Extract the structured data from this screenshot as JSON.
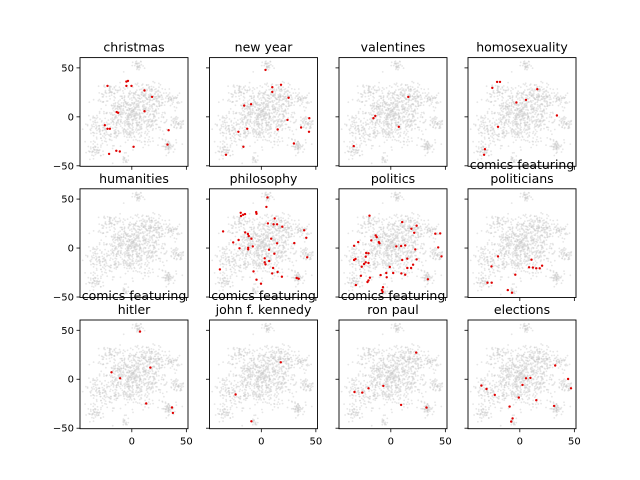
{
  "chart_data": {
    "type": "scatter",
    "layout": "3x4 small multiples, shared axes",
    "xlim": [
      -47.5,
      51.5
    ],
    "ylim": [
      -50.5,
      60.5
    ],
    "xticks": [
      0,
      50
    ],
    "yticks": [
      50,
      0,
      -50
    ],
    "xtick_labels": [
      "0",
      "50"
    ],
    "ytick_labels": [
      "50",
      "0",
      "−50"
    ],
    "background_color": "#c8c8c8",
    "highlight_color": "#e00000",
    "panels": [
      {
        "title": "christmas",
        "points": [
          [
            -22.3,
            31.6
          ],
          [
            -5,
            36
          ],
          [
            -3.5,
            36.7
          ],
          [
            -5,
            31.6
          ],
          [
            -0.3,
            31.6
          ],
          [
            11.6,
            26.9
          ],
          [
            18.6,
            20.4
          ],
          [
            -13.9,
            4.8
          ],
          [
            -12.6,
            4.1
          ],
          [
            11.6,
            5.8
          ],
          [
            -24.8,
            -8.5
          ],
          [
            -22.3,
            -12.2
          ],
          [
            -20.1,
            -12.2
          ],
          [
            33.7,
            -13.6
          ],
          [
            32.7,
            -28.3
          ],
          [
            1.6,
            -30.6
          ],
          [
            -14.2,
            -34.7
          ],
          [
            -11,
            -35.4
          ],
          [
            -20.8,
            -37.8
          ]
        ]
      },
      {
        "title": "new year",
        "points": [
          [
            3.8,
            47.9
          ],
          [
            10.1,
            30.3
          ],
          [
            18,
            32.7
          ],
          [
            10.1,
            25.5
          ],
          [
            25,
            19.4
          ],
          [
            -15.7,
            11.5
          ],
          [
            -9.4,
            12.9
          ],
          [
            24,
            -3.1
          ],
          [
            44,
            -1.4
          ],
          [
            -21,
            -15.3
          ],
          [
            -12.9,
            -12.2
          ],
          [
            15,
            -12.9
          ],
          [
            36.5,
            -10.9
          ],
          [
            43.7,
            -15.3
          ],
          [
            29.9,
            -27.2
          ],
          [
            -16.4,
            -30.6
          ],
          [
            -32.4,
            -38.8
          ]
        ]
      },
      {
        "title": "valentines",
        "points": [
          [
            16,
            20.4
          ],
          [
            -14.2,
            1
          ],
          [
            -16,
            -1.4
          ],
          [
            7.3,
            -10.2
          ],
          [
            -34,
            -29.9
          ]
        ]
      },
      {
        "title": "homosexuality",
        "points": [
          [
            -20.8,
            35.7
          ],
          [
            -18.2,
            35.7
          ],
          [
            -25.2,
            29.6
          ],
          [
            16,
            28.2
          ],
          [
            5.7,
            17.3
          ],
          [
            -3.1,
            14.6
          ],
          [
            34,
            1.4
          ],
          [
            -20,
            -10.2
          ],
          [
            -32,
            -33
          ],
          [
            -32.7,
            -38.8
          ]
        ]
      },
      {
        "title": "humanities",
        "points": []
      },
      {
        "title": "philosophy",
        "points": [
          [
            5.7,
            51.7
          ],
          [
            4.7,
            42
          ],
          [
            -18.9,
            36
          ],
          [
            -16.7,
            34
          ],
          [
            -15,
            34.7
          ],
          [
            -18.6,
            32.7
          ],
          [
            -4.7,
            36.7
          ],
          [
            -4.4,
            35
          ],
          [
            12.3,
            30.3
          ],
          [
            6,
            25.2
          ],
          [
            11.3,
            24.2
          ],
          [
            14.5,
            24.2
          ],
          [
            19.2,
            21.8
          ],
          [
            -35,
            17
          ],
          [
            -14.8,
            16
          ],
          [
            -12.3,
            14.3
          ],
          [
            -11.6,
            12.2
          ],
          [
            -9.1,
            9.5
          ],
          [
            9.1,
            9.5
          ],
          [
            39.3,
            18.1
          ],
          [
            41.2,
            10.5
          ],
          [
            -20.8,
            8.2
          ],
          [
            -25.8,
            5.8
          ],
          [
            -12,
            0.3
          ],
          [
            -12,
            -1.4
          ],
          [
            -7.8,
            1.7
          ],
          [
            -20,
            -0.3
          ],
          [
            14.5,
            4.8
          ],
          [
            30.2,
            5.1
          ],
          [
            7,
            -1.7
          ],
          [
            12,
            -5.8
          ],
          [
            42.1,
            -9.5
          ],
          [
            3.1,
            -10.5
          ],
          [
            7.2,
            -13.3
          ],
          [
            3.1,
            -14.6
          ],
          [
            3.8,
            -16.7
          ],
          [
            10.8,
            -20.4
          ],
          [
            14.9,
            -24.5
          ],
          [
            10,
            -25.9
          ],
          [
            -7.2,
            -23.8
          ],
          [
            18.9,
            -29.3
          ],
          [
            32.4,
            -30.6
          ],
          [
            34.3,
            -31.3
          ],
          [
            -38,
            -21.8
          ],
          [
            -4.4,
            -32.3
          ],
          [
            -0.3,
            -36.4
          ]
        ]
      },
      {
        "title": "politics",
        "points": [
          [
            -19.5,
            33
          ],
          [
            10.4,
            26.5
          ],
          [
            18.9,
            19.7
          ],
          [
            23.6,
            22.8
          ],
          [
            21.4,
            15.6
          ],
          [
            40.8,
            14.6
          ],
          [
            45.3,
            15
          ],
          [
            -13.9,
            12.9
          ],
          [
            -12.9,
            11.2
          ],
          [
            -17.9,
            7.8
          ],
          [
            -11,
            6.1
          ],
          [
            -10.4,
            4.8
          ],
          [
            -29.9,
            6.1
          ],
          [
            -33.7,
            2.3
          ],
          [
            5,
            1.7
          ],
          [
            9.4,
            2
          ],
          [
            13.2,
            2.7
          ],
          [
            22.4,
            -1.4
          ],
          [
            43.4,
            0.7
          ],
          [
            46.5,
            -8.5
          ],
          [
            -22.6,
            -5.1
          ],
          [
            -20.5,
            -5.4
          ],
          [
            -23,
            -8.8
          ],
          [
            -32.4,
            -11.2
          ],
          [
            -33.7,
            -12.2
          ],
          [
            -23,
            -14.6
          ],
          [
            -20.5,
            -15.3
          ],
          [
            -24.5,
            -16.3
          ],
          [
            -26.7,
            -19
          ],
          [
            10.4,
            -12.2
          ],
          [
            15.1,
            -10.9
          ],
          [
            23.6,
            -11.6
          ],
          [
            20.4,
            -17
          ],
          [
            18.6,
            -20.4
          ],
          [
            15.1,
            -20.4
          ],
          [
            -0.9,
            -19.4
          ],
          [
            2.2,
            -25.5
          ],
          [
            -4.1,
            -25.5
          ],
          [
            -3.8,
            -29.9
          ],
          [
            -9.4,
            -27.6
          ],
          [
            9.7,
            -25.9
          ],
          [
            13.2,
            -27.2
          ],
          [
            -27.4,
            -28.3
          ],
          [
            -19.2,
            -30.3
          ],
          [
            -20.5,
            -33
          ],
          [
            -21.4,
            -34.7
          ],
          [
            -32,
            -37.8
          ],
          [
            34,
            -31.9
          ],
          [
            -7.2,
            -40
          ],
          [
            -8.2,
            -42.9
          ],
          [
            -7.5,
            -44.9
          ]
        ]
      },
      {
        "title": "comics featuring politicians",
        "points": [
          [
            -20,
            -8.5
          ],
          [
            -26,
            -18.7
          ],
          [
            10.7,
            -11.9
          ],
          [
            8.5,
            -19.7
          ],
          [
            12,
            -20
          ],
          [
            15,
            -20.7
          ],
          [
            18.2,
            -20.7
          ],
          [
            20.4,
            -18
          ],
          [
            -4.1,
            -27.2
          ],
          [
            -29.6,
            -35.4
          ],
          [
            -25.8,
            -35.4
          ],
          [
            -11,
            -42.9
          ],
          [
            -7.2,
            -45.6
          ]
        ]
      },
      {
        "title": "comics featuring hitler",
        "points": [
          [
            7.5,
            48.7
          ],
          [
            -18.6,
            7.1
          ],
          [
            -10.7,
            1
          ],
          [
            17,
            11.9
          ],
          [
            13.2,
            -24.8
          ],
          [
            36.8,
            -28.9
          ],
          [
            37.7,
            -34.4
          ]
        ]
      },
      {
        "title": "comics featuring john f. kennedy",
        "points": [
          [
            17.9,
            17.3
          ],
          [
            -23.6,
            -15.6
          ],
          [
            -9.1,
            -42.9
          ]
        ]
      },
      {
        "title": "comics featuring ron paul",
        "points": [
          [
            23.3,
            27.2
          ],
          [
            -33.3,
            -13
          ],
          [
            -26.1,
            -13.6
          ],
          [
            -20.5,
            -9.2
          ],
          [
            -6.9,
            -6.8
          ],
          [
            9.4,
            -26.2
          ],
          [
            32.7,
            -29
          ]
        ]
      },
      {
        "title": "elections",
        "points": [
          [
            32.4,
            14
          ],
          [
            44.3,
            0.3
          ],
          [
            46.9,
            -9.2
          ],
          [
            -35.2,
            -6.5
          ],
          [
            -30.5,
            -10
          ],
          [
            -22.9,
            -16
          ],
          [
            2.5,
            -5.8
          ],
          [
            5.7,
            1
          ],
          [
            9.7,
            1.4
          ],
          [
            -0.9,
            -18.7
          ],
          [
            15.1,
            -21.4
          ],
          [
            -9.4,
            -27.9
          ],
          [
            31.4,
            -27.2
          ],
          [
            -6.6,
            -40
          ],
          [
            -7.9,
            -43.2
          ]
        ]
      }
    ]
  }
}
